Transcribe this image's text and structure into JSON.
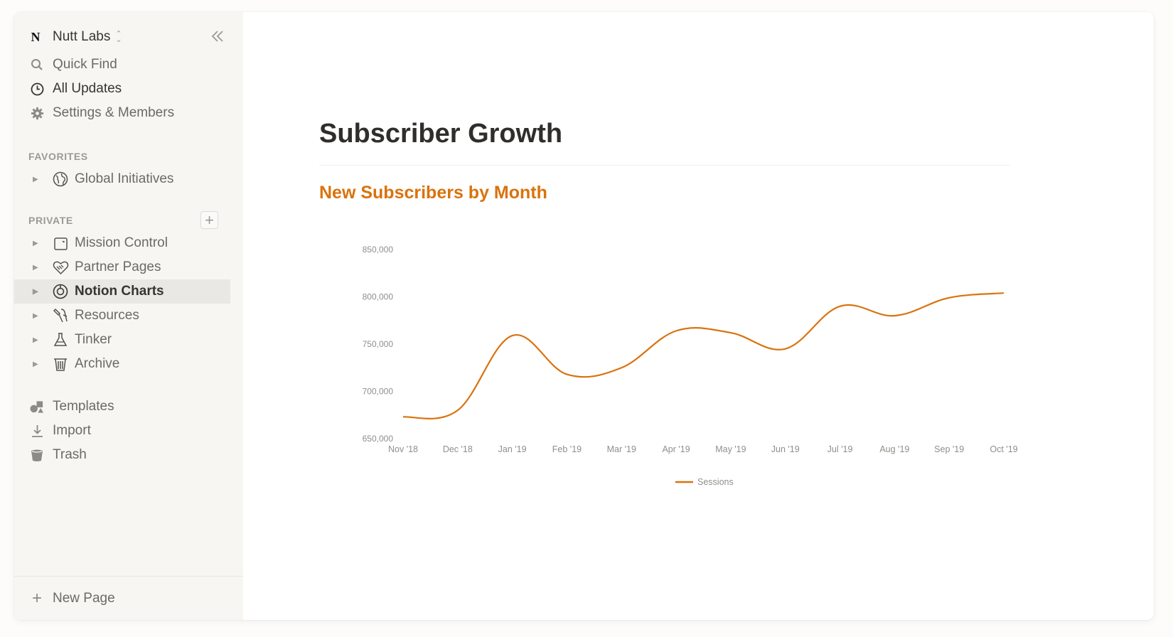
{
  "workspace": {
    "name": "Nutt Labs",
    "logo": "N"
  },
  "sidebar": {
    "quick_links": [
      {
        "label": "Quick Find",
        "icon": "search-icon"
      },
      {
        "label": "All Updates",
        "icon": "clock-icon"
      },
      {
        "label": "Settings & Members",
        "icon": "gear-icon"
      }
    ],
    "favorites_label": "FAVORITES",
    "favorites": [
      {
        "label": "Global Initiatives",
        "icon": "globe-icon"
      }
    ],
    "private_label": "PRIVATE",
    "private": [
      {
        "label": "Mission Control",
        "icon": "calendar-icon"
      },
      {
        "label": "Partner Pages",
        "icon": "handshake-icon"
      },
      {
        "label": "Notion Charts",
        "icon": "pie-chart-icon"
      },
      {
        "label": "Resources",
        "icon": "tools-icon"
      },
      {
        "label": "Tinker",
        "icon": "flask-icon"
      },
      {
        "label": "Archive",
        "icon": "wastebasket-icon"
      }
    ],
    "active_item": "Notion Charts",
    "bottom_links": [
      {
        "label": "Templates",
        "icon": "shapes-icon"
      },
      {
        "label": "Import",
        "icon": "download-icon"
      },
      {
        "label": "Trash",
        "icon": "trash-icon"
      }
    ],
    "new_page_label": "New Page"
  },
  "main": {
    "page_title": "Subscriber Growth"
  },
  "chart_data": {
    "type": "line",
    "title": "New Subscribers by Month",
    "categories": [
      "Nov '18",
      "Dec '18",
      "Jan '19",
      "Feb '19",
      "Mar '19",
      "Apr '19",
      "May '19",
      "Jun '19",
      "Jul '19",
      "Aug '19",
      "Sep '19",
      "Oct '19"
    ],
    "series": [
      {
        "name": "Sessions",
        "values": [
          673000,
          680000,
          759000,
          718000,
          725000,
          764000,
          762000,
          745000,
          790000,
          780000,
          799000,
          804000
        ]
      }
    ],
    "ylim": [
      650000,
      850000
    ],
    "yticks": [
      650000,
      700000,
      750000,
      800000,
      850000
    ],
    "ytick_labels": [
      "650,000",
      "700,000",
      "750,000",
      "800,000",
      "850,000"
    ],
    "legend_position": "bottom",
    "grid": false,
    "line_color": "#d9730d"
  },
  "colors": {
    "accent": "#d9730d",
    "sidebar_bg": "#f7f6f3",
    "active_bg": "#e9e8e5"
  }
}
